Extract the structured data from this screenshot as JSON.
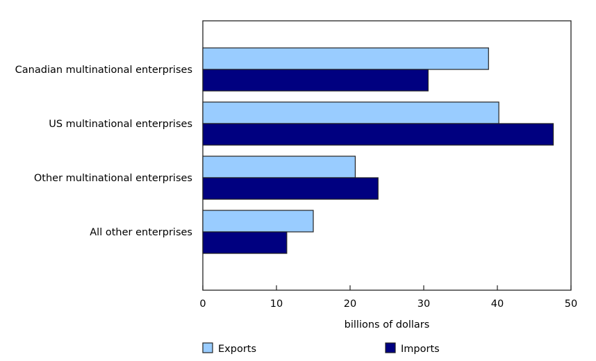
{
  "chart_data": {
    "type": "bar",
    "orientation": "horizontal",
    "categories": [
      "Canadian multinational enterprises",
      "US multinational enterprises",
      "Other multinational enterprises",
      "All other enterprises"
    ],
    "series": [
      {
        "name": "Exports",
        "color": "#99CCFF",
        "values": [
          38.8,
          40.2,
          20.7,
          15.0
        ]
      },
      {
        "name": "Imports",
        "color": "#000080",
        "values": [
          30.6,
          47.6,
          23.8,
          11.4
        ]
      }
    ],
    "title": "",
    "xlabel": "billions of dollars",
    "ylabel": "",
    "xlim": [
      0,
      50
    ],
    "xticks": [
      "0",
      "10",
      "20",
      "30",
      "40",
      "50"
    ],
    "grid": false,
    "legend_position": "bottom"
  }
}
